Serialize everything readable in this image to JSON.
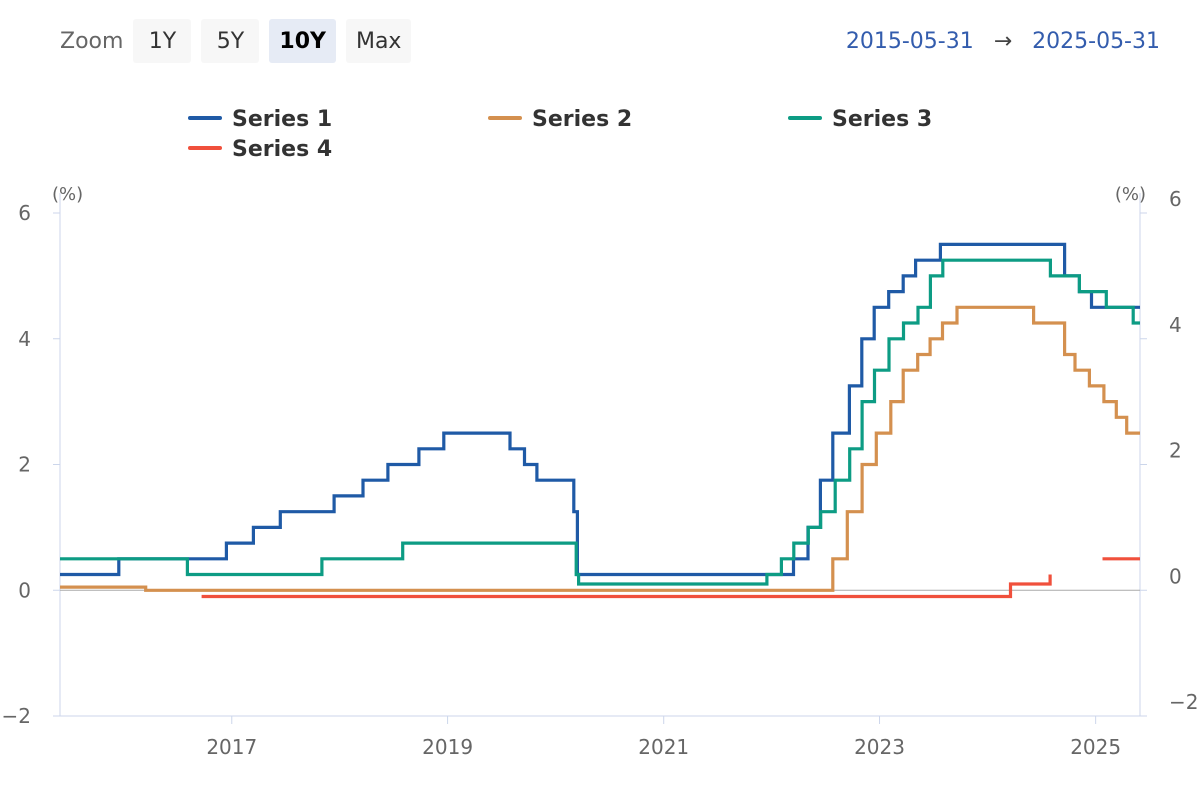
{
  "toolbar": {
    "zoom_label": "Zoom",
    "buttons": [
      "1Y",
      "5Y",
      "10Y",
      "Max"
    ],
    "active": "10Y"
  },
  "range": {
    "from": "2015-05-31",
    "arrow": "→",
    "to": "2025-05-31"
  },
  "chart_data": {
    "type": "line",
    "step": true,
    "title": "",
    "xlabel": "",
    "ylabel": "",
    "y_unit_left": "(%)",
    "y_unit_right": "(%)",
    "xlim": [
      "2015-05-31",
      "2025-05-31"
    ],
    "ylim_left": [
      -2,
      6
    ],
    "ylim_right": [
      -2,
      6
    ],
    "yticks_left": [
      -2,
      0,
      2,
      4,
      6
    ],
    "yticks_right": [
      -2,
      0,
      2,
      4,
      6
    ],
    "xticks": [
      "2017",
      "2019",
      "2021",
      "2023",
      "2025"
    ],
    "legend_position": "top",
    "grid": false,
    "series": [
      {
        "name": "Series 1",
        "color": "#1f5aa6",
        "points": [
          [
            "2015-05-31",
            0.25
          ],
          [
            "2015-12-16",
            0.5
          ],
          [
            "2016-12-14",
            0.75
          ],
          [
            "2017-03-15",
            1.0
          ],
          [
            "2017-06-14",
            1.25
          ],
          [
            "2017-12-13",
            1.5
          ],
          [
            "2018-03-21",
            1.75
          ],
          [
            "2018-06-13",
            2.0
          ],
          [
            "2018-09-26",
            2.25
          ],
          [
            "2018-12-19",
            2.5
          ],
          [
            "2019-07-31",
            2.25
          ],
          [
            "2019-09-18",
            2.0
          ],
          [
            "2019-10-30",
            1.75
          ],
          [
            "2020-03-03",
            1.25
          ],
          [
            "2020-03-15",
            0.25
          ],
          [
            "2022-03-16",
            0.5
          ],
          [
            "2022-05-04",
            1.0
          ],
          [
            "2022-06-15",
            1.75
          ],
          [
            "2022-07-27",
            2.5
          ],
          [
            "2022-09-21",
            3.25
          ],
          [
            "2022-11-02",
            4.0
          ],
          [
            "2022-12-14",
            4.5
          ],
          [
            "2023-02-01",
            4.75
          ],
          [
            "2023-03-22",
            5.0
          ],
          [
            "2023-05-03",
            5.25
          ],
          [
            "2023-07-26",
            5.5
          ],
          [
            "2024-09-18",
            5.0
          ],
          [
            "2024-11-07",
            4.75
          ],
          [
            "2024-12-18",
            4.5
          ],
          [
            "2025-05-31",
            4.5
          ]
        ]
      },
      {
        "name": "Series 2",
        "color": "#d4904f",
        "points": [
          [
            "2015-05-31",
            0.05
          ],
          [
            "2016-03-16",
            0.0
          ],
          [
            "2022-07-27",
            0.5
          ],
          [
            "2022-09-14",
            1.25
          ],
          [
            "2022-11-03",
            2.0
          ],
          [
            "2022-12-21",
            2.5
          ],
          [
            "2023-02-08",
            3.0
          ],
          [
            "2023-03-22",
            3.5
          ],
          [
            "2023-05-10",
            3.75
          ],
          [
            "2023-06-21",
            4.0
          ],
          [
            "2023-08-02",
            4.25
          ],
          [
            "2023-09-20",
            4.5
          ],
          [
            "2024-06-05",
            4.25
          ],
          [
            "2024-09-18",
            3.75
          ],
          [
            "2024-10-23",
            3.5
          ],
          [
            "2024-12-11",
            3.25
          ],
          [
            "2025-01-29",
            3.0
          ],
          [
            "2025-03-12",
            2.75
          ],
          [
            "2025-04-16",
            2.5
          ],
          [
            "2025-05-31",
            2.5
          ]
        ]
      },
      {
        "name": "Series 3",
        "color": "#0d9c84",
        "points": [
          [
            "2015-05-31",
            0.5
          ],
          [
            "2016-08-04",
            0.25
          ],
          [
            "2017-11-02",
            0.5
          ],
          [
            "2018-08-02",
            0.75
          ],
          [
            "2020-03-11",
            0.25
          ],
          [
            "2020-03-19",
            0.1
          ],
          [
            "2021-12-16",
            0.25
          ],
          [
            "2022-02-03",
            0.5
          ],
          [
            "2022-03-17",
            0.75
          ],
          [
            "2022-05-05",
            1.0
          ],
          [
            "2022-06-16",
            1.25
          ],
          [
            "2022-08-04",
            1.75
          ],
          [
            "2022-09-22",
            2.25
          ],
          [
            "2022-11-03",
            3.0
          ],
          [
            "2022-12-15",
            3.5
          ],
          [
            "2023-02-02",
            4.0
          ],
          [
            "2023-03-23",
            4.25
          ],
          [
            "2023-05-11",
            4.5
          ],
          [
            "2023-06-22",
            5.0
          ],
          [
            "2023-08-03",
            5.25
          ],
          [
            "2024-08-01",
            5.0
          ],
          [
            "2024-11-07",
            4.75
          ],
          [
            "2025-02-06",
            4.5
          ],
          [
            "2025-05-08",
            4.25
          ],
          [
            "2025-05-31",
            4.25
          ]
        ]
      },
      {
        "name": "Series 4",
        "color": "#f0503c",
        "points": [
          [
            "2016-09-21",
            -0.1
          ],
          [
            "2024-03-19",
            0.1
          ],
          [
            "2024-07-31",
            0.25
          ],
          [
            "2025-01-24",
            null
          ],
          [
            "2025-01-24",
            0.5
          ],
          [
            "2025-05-31",
            0.5
          ]
        ]
      }
    ]
  }
}
